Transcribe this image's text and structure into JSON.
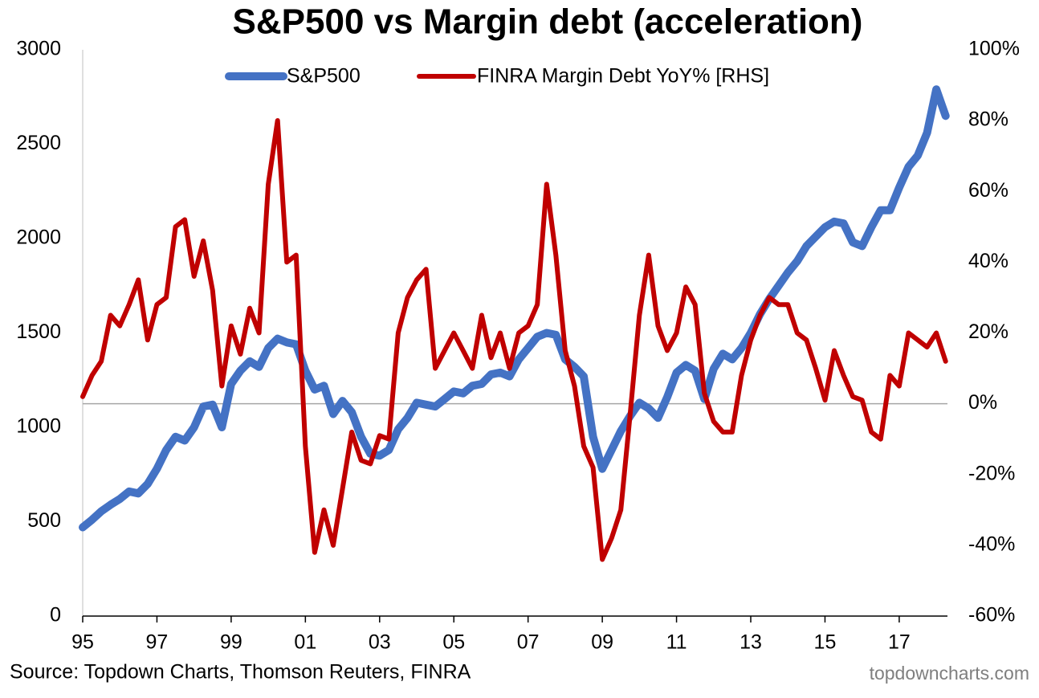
{
  "chart_data": {
    "type": "line",
    "title": "S&P500 vs Margin debt (acceleration)",
    "source": "Source: Topdown Charts, Thomson Reuters, FINRA",
    "watermark": "topdowncharts.com",
    "x": [
      1995,
      1995.25,
      1995.5,
      1995.75,
      1996,
      1996.25,
      1996.5,
      1996.75,
      1997,
      1997.25,
      1997.5,
      1997.75,
      1998,
      1998.25,
      1998.5,
      1998.75,
      1999,
      1999.25,
      1999.5,
      1999.75,
      2000,
      2000.25,
      2000.5,
      2000.75,
      2001,
      2001.25,
      2001.5,
      2001.75,
      2002,
      2002.25,
      2002.5,
      2002.75,
      2003,
      2003.25,
      2003.5,
      2003.75,
      2004,
      2004.25,
      2004.5,
      2004.75,
      2005,
      2005.25,
      2005.5,
      2005.75,
      2006,
      2006.25,
      2006.5,
      2006.75,
      2007,
      2007.25,
      2007.5,
      2007.75,
      2008,
      2008.25,
      2008.5,
      2008.75,
      2009,
      2009.25,
      2009.5,
      2009.75,
      2010,
      2010.25,
      2010.5,
      2010.75,
      2011,
      2011.25,
      2011.5,
      2011.75,
      2012,
      2012.25,
      2012.5,
      2012.75,
      2013,
      2013.25,
      2013.5,
      2013.75,
      2014,
      2014.25,
      2014.5,
      2014.75,
      2015,
      2015.25,
      2015.5,
      2015.75,
      2016,
      2016.25,
      2016.5,
      2016.75,
      2017,
      2017.25,
      2017.5,
      2017.75,
      2018,
      2018.25
    ],
    "series": [
      {
        "name": "S&P500",
        "color": "#4472c4",
        "axis": "y",
        "values": [
          470,
          510,
          555,
          590,
          620,
          660,
          650,
          700,
          780,
          880,
          950,
          930,
          1000,
          1110,
          1120,
          1000,
          1230,
          1300,
          1350,
          1320,
          1420,
          1470,
          1450,
          1440,
          1300,
          1200,
          1220,
          1070,
          1140,
          1080,
          950,
          860,
          850,
          880,
          990,
          1050,
          1130,
          1120,
          1110,
          1150,
          1190,
          1180,
          1220,
          1230,
          1280,
          1290,
          1270,
          1360,
          1420,
          1480,
          1500,
          1490,
          1360,
          1320,
          1270,
          950,
          780,
          880,
          980,
          1060,
          1130,
          1100,
          1050,
          1160,
          1290,
          1330,
          1300,
          1150,
          1310,
          1390,
          1360,
          1420,
          1500,
          1600,
          1680,
          1750,
          1820,
          1880,
          1960,
          2010,
          2060,
          2090,
          2080,
          1980,
          1960,
          2060,
          2150,
          2150,
          2270,
          2380,
          2440,
          2560,
          2790,
          2650
        ]
      },
      {
        "name": "FINRA Margin Debt YoY% [RHS]",
        "color": "#c00000",
        "axis": "y2",
        "values": [
          2,
          8,
          12,
          25,
          22,
          28,
          35,
          18,
          28,
          30,
          50,
          52,
          36,
          46,
          32,
          5,
          22,
          14,
          27,
          20,
          62,
          80,
          40,
          42,
          -12,
          -42,
          -30,
          -40,
          -24,
          -8,
          -16,
          -17,
          -9,
          -10,
          20,
          30,
          35,
          38,
          10,
          15,
          20,
          15,
          10,
          25,
          13,
          20,
          10,
          20,
          22,
          28,
          62,
          42,
          15,
          5,
          -12,
          -18,
          -44,
          -38,
          -30,
          -3,
          25,
          42,
          22,
          15,
          20,
          33,
          28,
          3,
          -5,
          -8,
          -8,
          8,
          18,
          25,
          30,
          28,
          28,
          20,
          18,
          10,
          1,
          15,
          8,
          2,
          1,
          -8,
          -10,
          8,
          5,
          20,
          18,
          16,
          20,
          12
        ]
      }
    ],
    "xlim": [
      1995,
      2018.3
    ],
    "xticks": [
      {
        "value": 1995,
        "label": "95"
      },
      {
        "value": 1997,
        "label": "97"
      },
      {
        "value": 1999,
        "label": "99"
      },
      {
        "value": 2001,
        "label": "01"
      },
      {
        "value": 2003,
        "label": "03"
      },
      {
        "value": 2005,
        "label": "05"
      },
      {
        "value": 2007,
        "label": "07"
      },
      {
        "value": 2009,
        "label": "09"
      },
      {
        "value": 2011,
        "label": "11"
      },
      {
        "value": 2013,
        "label": "13"
      },
      {
        "value": 2015,
        "label": "15"
      },
      {
        "value": 2017,
        "label": "17"
      }
    ],
    "ylim": [
      0,
      3000
    ],
    "yticks": [
      0,
      500,
      1000,
      1500,
      2000,
      2500,
      3000
    ],
    "y2lim": [
      -60,
      100
    ],
    "y2ticks": [
      {
        "value": -60,
        "label": "-60%"
      },
      {
        "value": -40,
        "label": "-40%"
      },
      {
        "value": -20,
        "label": "-20%"
      },
      {
        "value": 0,
        "label": "0%"
      },
      {
        "value": 20,
        "label": "20%"
      },
      {
        "value": 40,
        "label": "40%"
      },
      {
        "value": 60,
        "label": "60%"
      },
      {
        "value": 80,
        "label": "80%"
      },
      {
        "value": 100,
        "label": "100%"
      }
    ],
    "y2_reference_line": 0,
    "legend": "top"
  }
}
